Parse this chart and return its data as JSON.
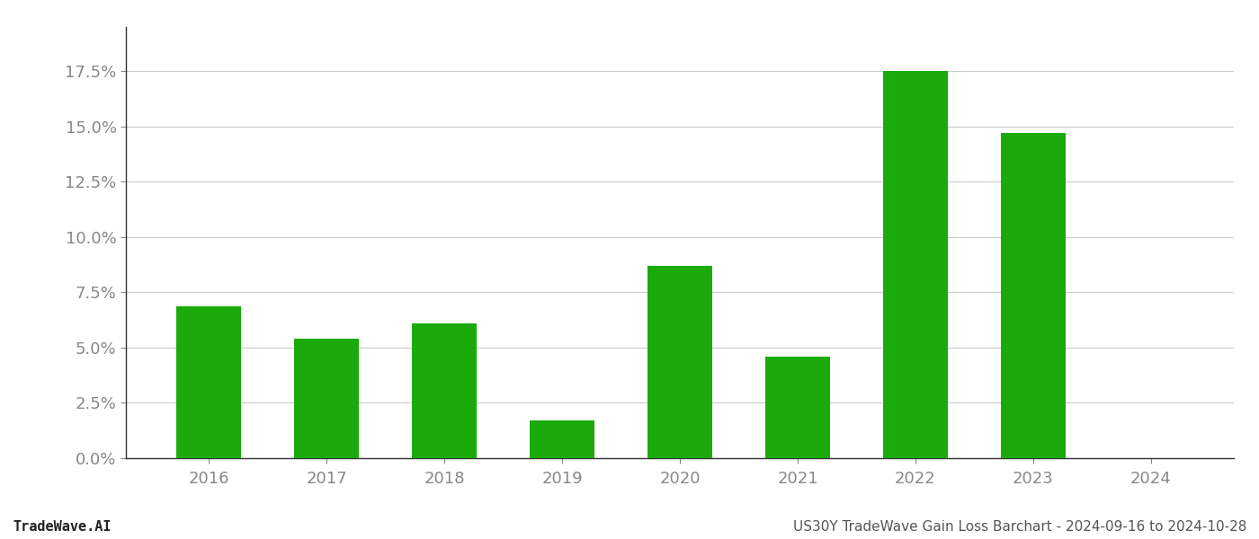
{
  "years": [
    2016,
    2017,
    2018,
    2019,
    2020,
    2021,
    2022,
    2023,
    2024
  ],
  "values": [
    0.0685,
    0.054,
    0.061,
    0.017,
    0.087,
    0.046,
    0.175,
    0.147,
    0.0
  ],
  "bar_color": "#1aab0a",
  "background_color": "#ffffff",
  "footer_left": "TradeWave.AI",
  "footer_right": "US30Y TradeWave Gain Loss Barchart - 2024-09-16 to 2024-10-28",
  "ylim": [
    0,
    0.195
  ],
  "yticks": [
    0.0,
    0.025,
    0.05,
    0.075,
    0.1,
    0.125,
    0.15,
    0.175
  ],
  "grid_color": "#cccccc",
  "tick_label_color": "#888888",
  "footer_color": "#555555",
  "footer_left_color": "#222222",
  "axis_line_color": "#333333"
}
